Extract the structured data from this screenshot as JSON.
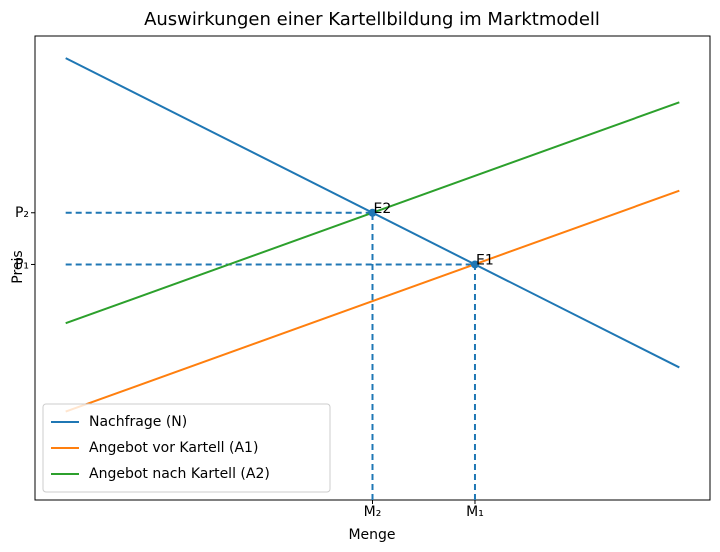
{
  "chart_data": {
    "type": "line",
    "title": "Auswirkungen einer Kartellbildung im Marktmodell",
    "x_label": "Menge",
    "y_label": "Preis",
    "x": [
      0,
      10
    ],
    "series": [
      {
        "name": "Nachfrage (N)",
        "color": "#1f77b4",
        "values": [
          10,
          3
        ]
      },
      {
        "name": "Angebot vor Kartell (A1)",
        "color": "#ff7f0e",
        "values": [
          2,
          7
        ]
      },
      {
        "name": "Angebot nach Kartell (A2)",
        "color": "#2ca02c",
        "values": [
          4,
          9
        ]
      }
    ],
    "points": [
      {
        "name": "E1",
        "x": 6.67,
        "y": 5.33
      },
      {
        "name": "E2",
        "x": 5,
        "y": 6.5
      }
    ],
    "point_color": "#1f77b4",
    "xlim": [
      -0.5,
      10.5
    ],
    "ylim": [
      0,
      10.5
    ],
    "xticks": [
      {
        "value": 5,
        "label": "M₂"
      },
      {
        "value": 6.67,
        "label": "M₁"
      }
    ],
    "yticks": [
      {
        "value": 6.5,
        "label": "P₂"
      },
      {
        "value": 5.33,
        "label": "P₁"
      }
    ],
    "legend": "lower left"
  }
}
